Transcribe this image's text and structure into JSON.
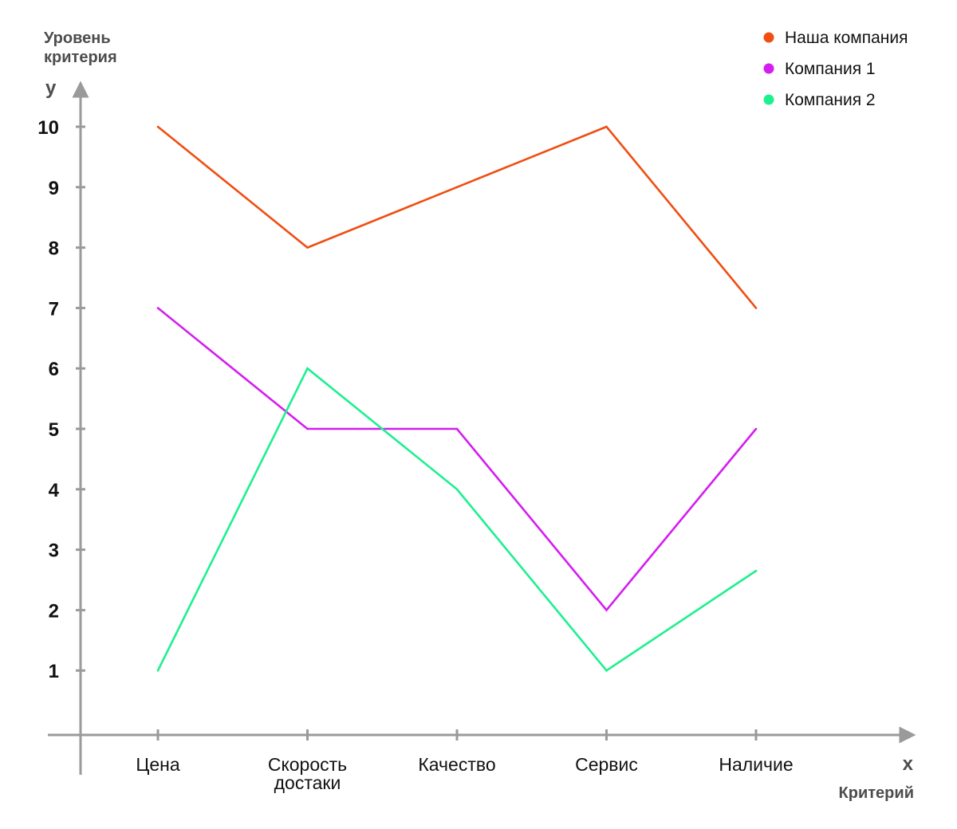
{
  "chart_data": {
    "type": "line",
    "title": "",
    "ylabel": [
      "Уровень",
      "критерия"
    ],
    "y_axis_letter": "y",
    "xlabel": "Критерий",
    "x_axis_letter": "x",
    "categories": [
      [
        "Цена"
      ],
      [
        "Скорость",
        "достаки"
      ],
      [
        "Качество"
      ],
      [
        "Сервис"
      ],
      [
        "Наличие"
      ]
    ],
    "yticks": [
      1,
      2,
      3,
      4,
      5,
      6,
      7,
      8,
      9,
      10
    ],
    "ylim": [
      0,
      10
    ],
    "grid": false,
    "legend_position": "top-right",
    "series": [
      {
        "name": "Наша компания",
        "color": "#f04e12",
        "values": [
          10,
          8,
          9,
          10,
          7
        ]
      },
      {
        "name": "Компания 1",
        "color": "#d41df0",
        "values": [
          7,
          5,
          5,
          2,
          5
        ]
      },
      {
        "name": "Компания 2",
        "color": "#1cf08f",
        "values": [
          1,
          6,
          4,
          1,
          2.65
        ]
      }
    ]
  }
}
